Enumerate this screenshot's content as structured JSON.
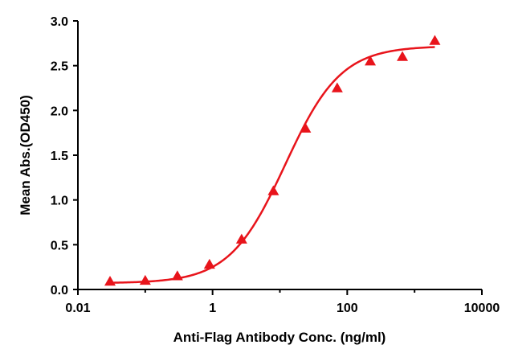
{
  "chart_data": {
    "type": "scatter",
    "title": "",
    "xlabel": "Anti-Flag Antibody Conc. (ng/ml)",
    "ylabel": "Mean Abs.(OD450)",
    "xscale": "log",
    "xlim": [
      0.01,
      10000
    ],
    "ylim": [
      0,
      3.0
    ],
    "xticks": [
      0.01,
      1,
      100,
      10000
    ],
    "xtick_labels": [
      "0.01",
      "1",
      "100",
      "10000"
    ],
    "yticks": [
      0,
      0.5,
      1.0,
      1.5,
      2.0,
      2.5,
      3.0
    ],
    "ytick_labels": [
      "0.0",
      "0.5",
      "1.0",
      "1.5",
      "2.0",
      "2.5",
      "3.0"
    ],
    "grid": false,
    "series": [
      {
        "name": "Anti-Flag Antibody",
        "color": "#e8141b",
        "marker": "triangle",
        "x": [
          0.03,
          0.1,
          0.3,
          0.9,
          2.7,
          8.0,
          24.0,
          71.0,
          220.0,
          660.0,
          2000.0
        ],
        "y": [
          0.09,
          0.1,
          0.15,
          0.28,
          0.56,
          1.1,
          1.8,
          2.25,
          2.55,
          2.6,
          2.78
        ]
      }
    ],
    "fit": {
      "model": "4PL",
      "bottom": 0.07,
      "top": 2.72,
      "ec50": 12.0,
      "hill": 1.05,
      "color": "#e8141b"
    }
  }
}
